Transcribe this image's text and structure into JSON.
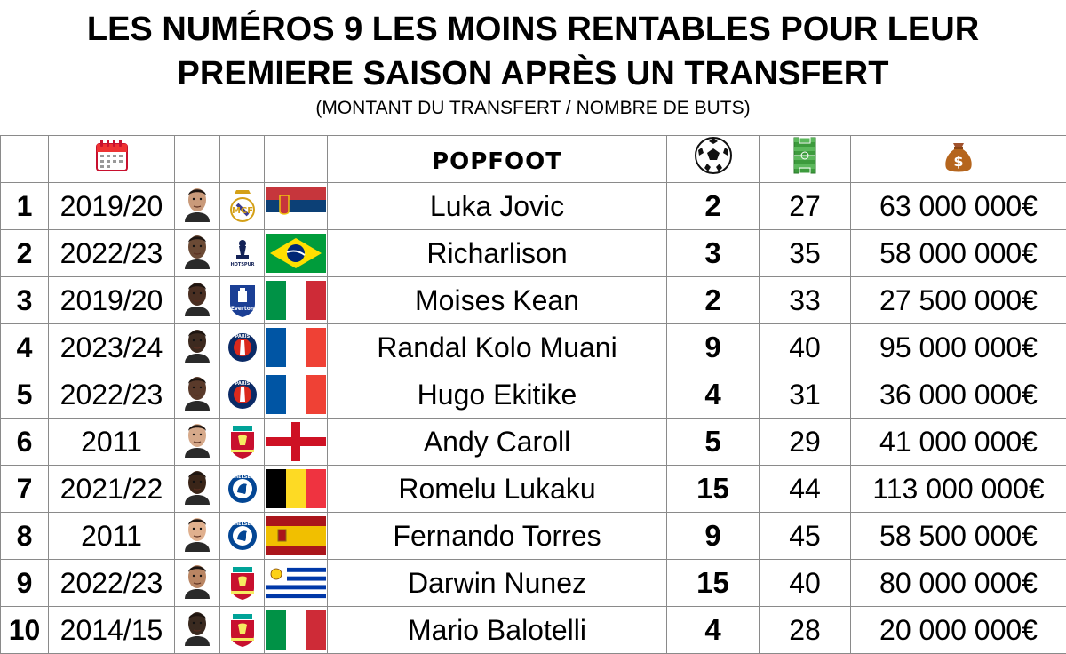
{
  "header": {
    "title_line1": "LES NUMÉROS 9 LES MOINS RENTABLES POUR LEUR",
    "title_line2": "PREMIERE SAISON APRÈS UN TRANSFERT",
    "subtitle": "(MONTANT DU TRANSFERT / NOMBRE DE BUTS)"
  },
  "columns": {
    "season_icon": "calendar-icon",
    "logo": "POPFOOT",
    "goals_icon": "soccer-ball-icon",
    "matches_icon": "pitch-icon",
    "fee_icon": "money-bag-icon"
  },
  "rows": [
    {
      "rank": "1",
      "season": "2019/20",
      "club": "Real Madrid",
      "flag": "Serbia",
      "name": "Luka Jovic",
      "goals": "2",
      "matches": "27",
      "fee": "63 000 000€"
    },
    {
      "rank": "2",
      "season": "2022/23",
      "club": "Tottenham",
      "flag": "Brazil",
      "name": "Richarlison",
      "goals": "3",
      "matches": "35",
      "fee": "58 000 000€"
    },
    {
      "rank": "3",
      "season": "2019/20",
      "club": "Everton",
      "flag": "Italy",
      "name": "Moises Kean",
      "goals": "2",
      "matches": "33",
      "fee": "27 500 000€"
    },
    {
      "rank": "4",
      "season": "2023/24",
      "club": "PSG",
      "flag": "France",
      "name": "Randal Kolo Muani",
      "goals": "9",
      "matches": "40",
      "fee": "95 000 000€"
    },
    {
      "rank": "5",
      "season": "2022/23",
      "club": "PSG",
      "flag": "France",
      "name": "Hugo Ekitike",
      "goals": "4",
      "matches": "31",
      "fee": "36 000 000€"
    },
    {
      "rank": "6",
      "season": "2011",
      "club": "Liverpool",
      "flag": "England",
      "name": "Andy Caroll",
      "goals": "5",
      "matches": "29",
      "fee": "41 000 000€"
    },
    {
      "rank": "7",
      "season": "2021/22",
      "club": "Chelsea",
      "flag": "Belgium",
      "name": "Romelu Lukaku",
      "goals": "15",
      "matches": "44",
      "fee": "113 000 000€"
    },
    {
      "rank": "8",
      "season": "2011",
      "club": "Chelsea",
      "flag": "Spain",
      "name": "Fernando Torres",
      "goals": "9",
      "matches": "45",
      "fee": "58 500 000€"
    },
    {
      "rank": "9",
      "season": "2022/23",
      "club": "Liverpool",
      "flag": "Uruguay",
      "name": "Darwin Nunez",
      "goals": "15",
      "matches": "40",
      "fee": "80 000 000€"
    },
    {
      "rank": "10",
      "season": "2014/15",
      "club": "Liverpool",
      "flag": "Italy",
      "name": "Mario Balotelli",
      "goals": "4",
      "matches": "28",
      "fee": "20 000 000€"
    }
  ],
  "colors": {
    "Real Madrid": "#e8e8f2",
    "Tottenham": "#ffffff",
    "Everton": "#1b3f95",
    "PSG": "#0b2a66",
    "Liverpool": "#c8102e",
    "Chelsea": "#034694",
    "skin": [
      "#c99a7a",
      "#6b4a35",
      "#4a2f22",
      "#3d2a1f",
      "#5a3a2a",
      "#d6a98a",
      "#3a2518",
      "#e0b08e",
      "#b98563",
      "#3a2a20"
    ]
  }
}
